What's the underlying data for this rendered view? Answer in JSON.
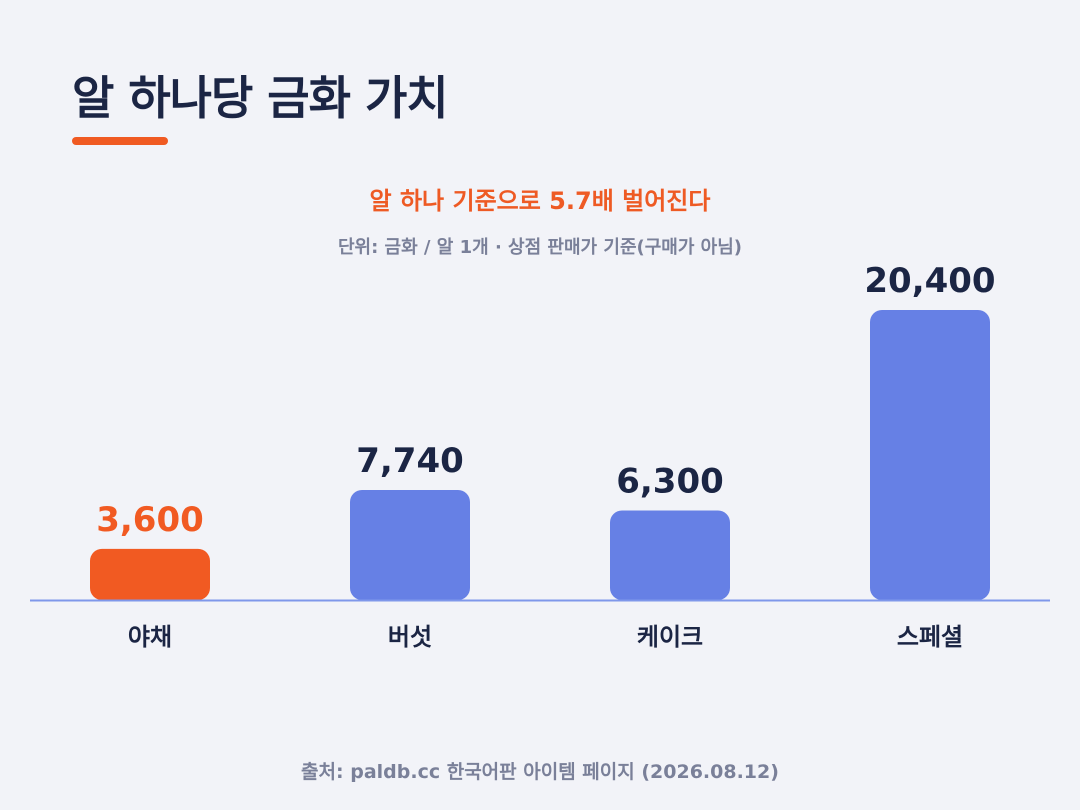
{
  "title": "알 하나당 금화 가치",
  "subtitle": "알 하나 기준으로 5.7배 벌어진다",
  "unit_note": "단위: 금화 / 알 1개 · 상점 판매가 기준(구매가 아님)",
  "source": "출처: paldb.cc 한국어판 아이템 페이지 (2026.08.12)",
  "colors": {
    "highlight": "#f15a22",
    "bar": "#6680e5",
    "baseline": "#7f97ea",
    "value_text": "#1b2544",
    "category_text": "#1b2544"
  },
  "chart_data": {
    "type": "bar",
    "categories": [
      "야채",
      "버섯",
      "케이크",
      "스페셜"
    ],
    "values": [
      3600,
      7740,
      6300,
      20400
    ],
    "value_labels": [
      "3,600",
      "7,740",
      "6,300",
      "20,400"
    ],
    "highlight_index": 0,
    "title": "알 하나당 금화 가치",
    "subtitle": "알 하나 기준으로 5.7배 벌어진다",
    "xlabel": "",
    "ylabel": "",
    "ylim": [
      0,
      20400
    ],
    "grid": false,
    "legend": "none"
  }
}
